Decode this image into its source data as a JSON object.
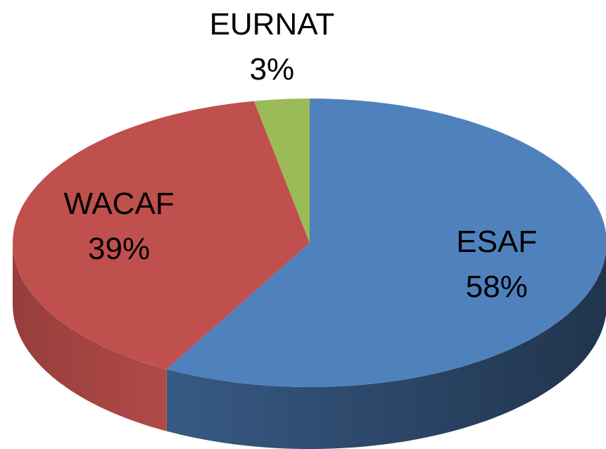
{
  "chart_data": {
    "type": "pie",
    "categories": [
      "ESAF",
      "WACAF",
      "EURNAT"
    ],
    "values": [
      58,
      39,
      3
    ],
    "value_labels": [
      "58%",
      "39%",
      "3%"
    ],
    "colors": [
      "#4f81bd",
      "#c0504d",
      "#9bbb59"
    ]
  }
}
